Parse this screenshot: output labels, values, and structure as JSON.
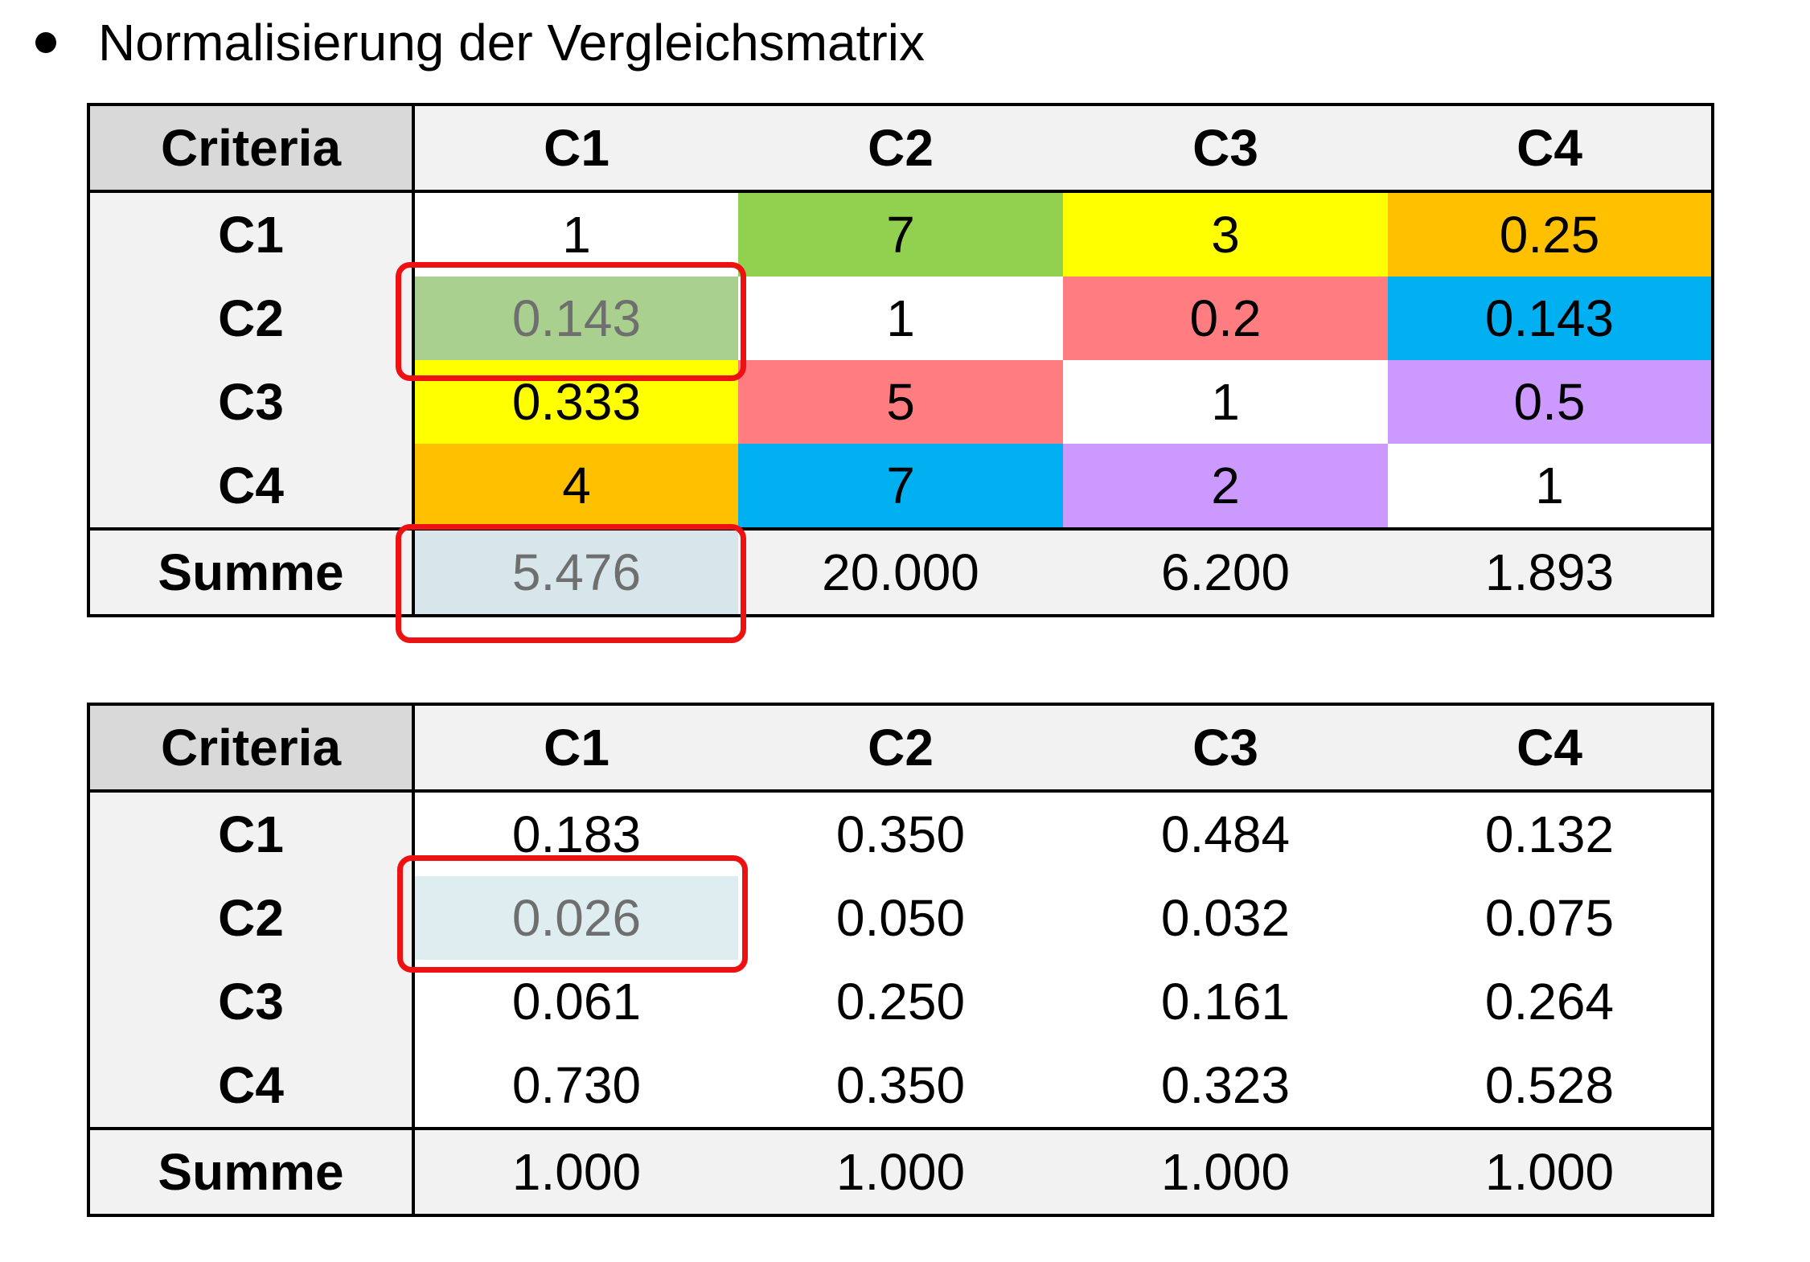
{
  "bullet": {
    "text": "Normalisierung der Vergleichsmatrix"
  },
  "matrix_a": {
    "corner": "Criteria",
    "columns": [
      "C1",
      "C2",
      "C3",
      "C4"
    ],
    "rows": [
      {
        "label": "C1",
        "cells": [
          "1",
          "7",
          "3",
          "0.25"
        ]
      },
      {
        "label": "C2",
        "cells": [
          "0.143",
          "1",
          "0.2",
          "0.143"
        ]
      },
      {
        "label": "C3",
        "cells": [
          "0.333",
          "5",
          "1",
          "0.5"
        ]
      },
      {
        "label": "C4",
        "cells": [
          "4",
          "7",
          "2",
          "1"
        ]
      }
    ],
    "sum": {
      "label": "Summe",
      "cells": [
        "5.476",
        "20.000",
        "6.200",
        "1.893"
      ]
    },
    "cell_colors": [
      [
        "#ffffff",
        "#92d050",
        "#ffff00",
        "#ffc000"
      ],
      [
        "#a9d08e",
        "#ffffff",
        "#ff7c80",
        "#00b0f0"
      ],
      [
        "#ffff00",
        "#ff7c80",
        "#ffffff",
        "#cc99ff"
      ],
      [
        "#ffc000",
        "#00b0f0",
        "#cc99ff",
        "#ffffff"
      ]
    ],
    "sum_highlight_color": "#d6e6ea"
  },
  "matrix_b": {
    "corner": "Criteria",
    "columns": [
      "C1",
      "C2",
      "C3",
      "C4"
    ],
    "rows": [
      {
        "label": "C1",
        "cells": [
          "0.183",
          "0.350",
          "0.484",
          "0.132"
        ]
      },
      {
        "label": "C2",
        "cells": [
          "0.026",
          "0.050",
          "0.032",
          "0.075"
        ]
      },
      {
        "label": "C3",
        "cells": [
          "0.061",
          "0.250",
          "0.161",
          "0.264"
        ]
      },
      {
        "label": "C4",
        "cells": [
          "0.730",
          "0.350",
          "0.323",
          "0.528"
        ]
      }
    ],
    "sum": {
      "label": "Summe",
      "cells": [
        "1.000",
        "1.000",
        "1.000",
        "1.000"
      ]
    },
    "highlight_color": "#ddedf0"
  },
  "colors": {
    "highlight_border": "#ee1111",
    "muted_text": "#6f6f6f"
  }
}
